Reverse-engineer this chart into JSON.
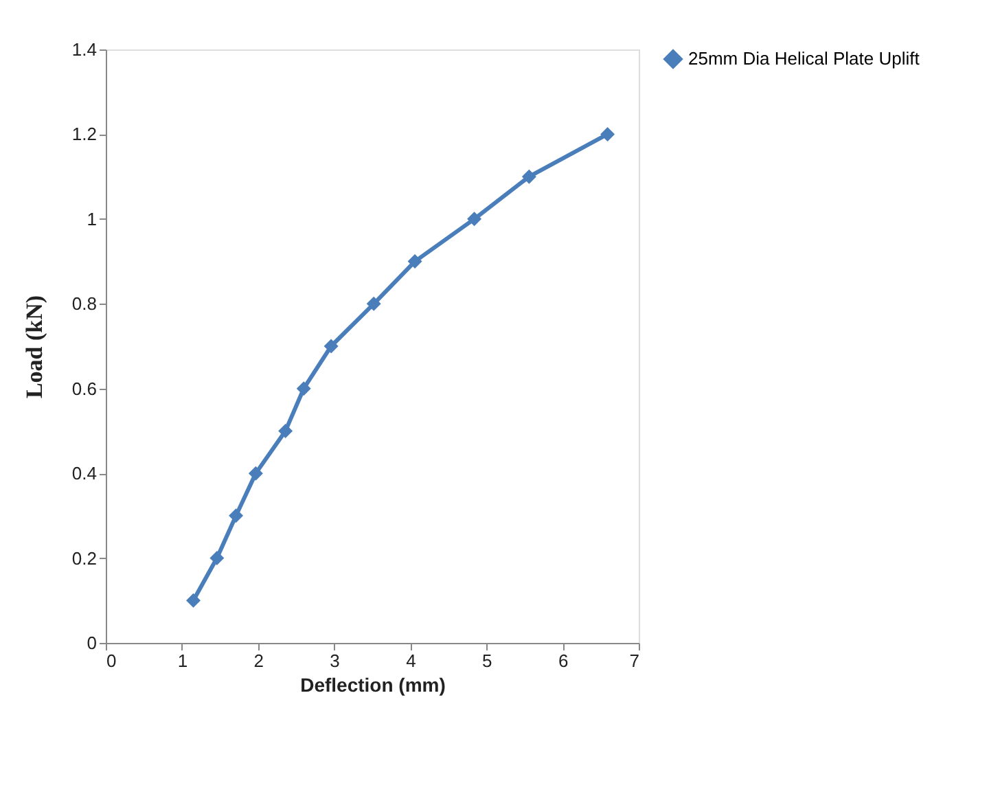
{
  "chart_data": {
    "type": "line",
    "xlabel": "Deflection (mm)",
    "ylabel": "Load (kN)",
    "x": [
      1.15,
      1.46,
      1.71,
      1.97,
      2.36,
      2.6,
      2.96,
      3.52,
      4.06,
      4.84,
      5.56,
      6.59
    ],
    "series": [
      {
        "name": "25mm Dia Helical Plate Uplift",
        "color": "#4a7ebb",
        "values": [
          0.1,
          0.2,
          0.3,
          0.4,
          0.5,
          0.6,
          0.7,
          0.8,
          0.9,
          1.0,
          1.1,
          1.2
        ]
      }
    ],
    "xlim": [
      0,
      7
    ],
    "xticks": [
      0,
      1,
      2,
      3,
      4,
      5,
      6,
      7
    ],
    "ylim": [
      0,
      1.4
    ],
    "yticks": [
      0,
      0.2,
      0.4,
      0.6,
      0.8,
      1,
      1.2,
      1.4
    ],
    "grid": false,
    "legend": "right",
    "marker": "diamond",
    "line_style": "solid"
  }
}
